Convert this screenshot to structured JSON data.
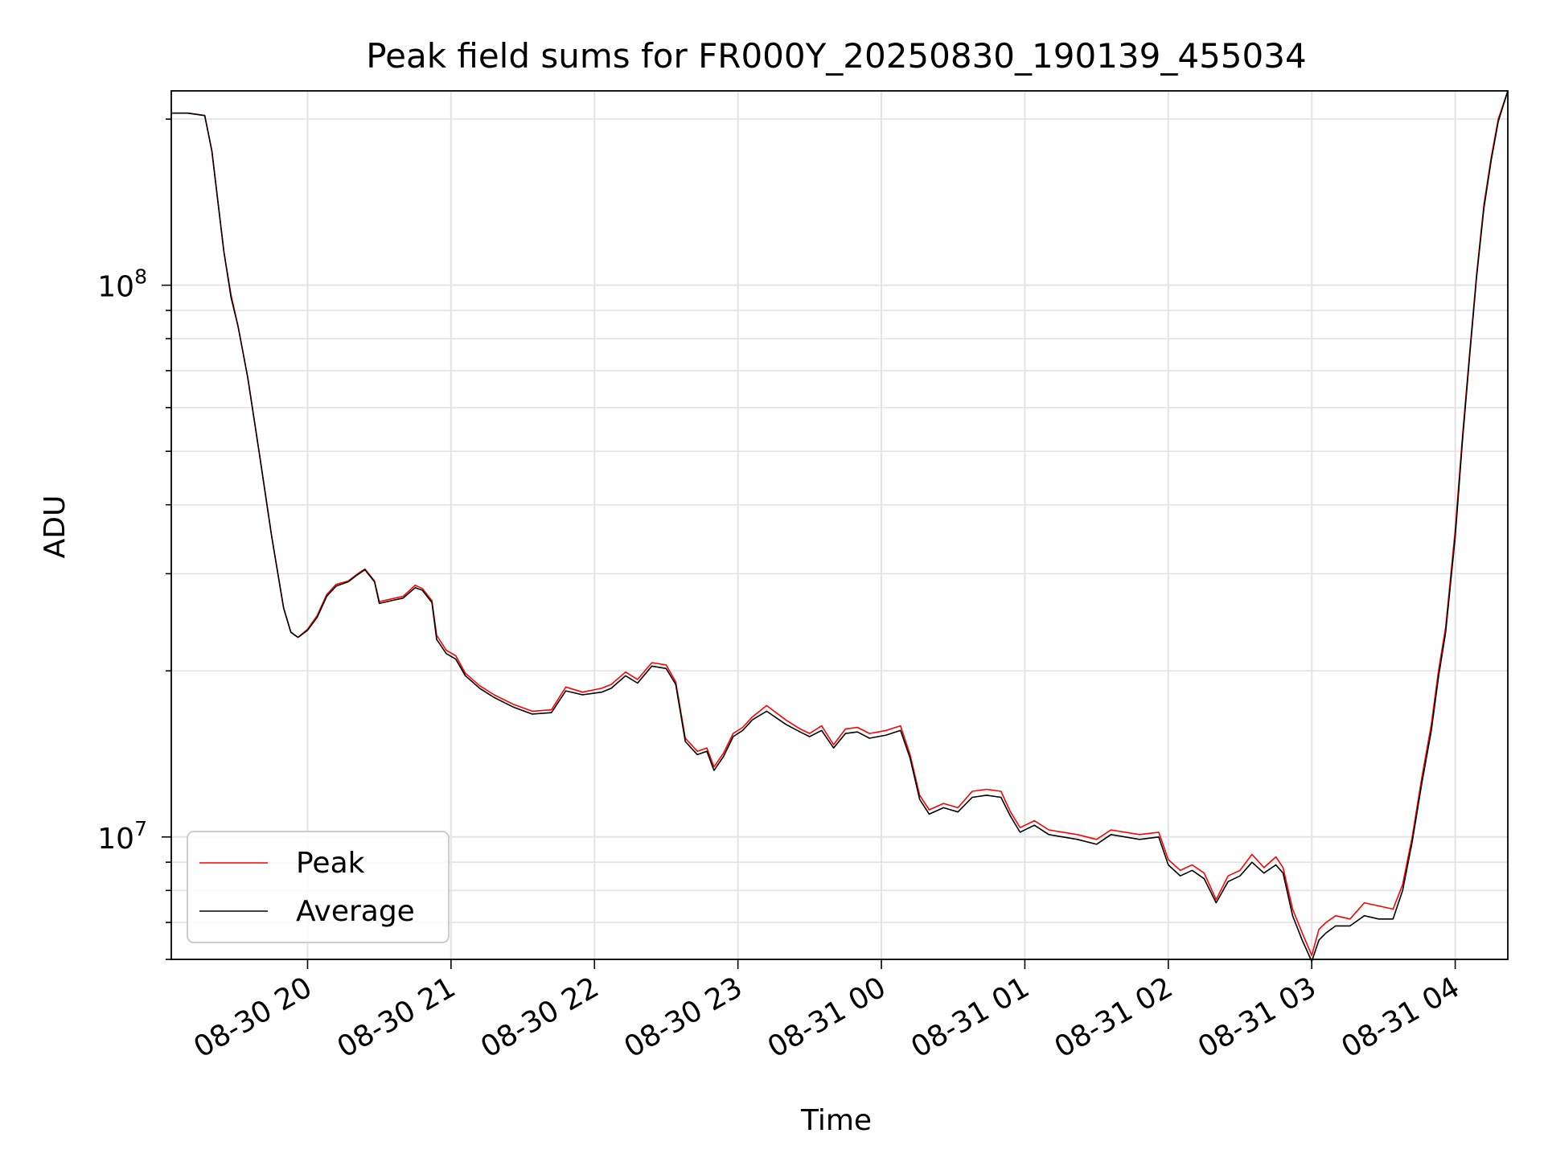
{
  "chart_data": {
    "type": "line",
    "title": "Peak field sums for FR000Y_20250830_190139_455034",
    "xlabel": "Time",
    "ylabel": "ADU",
    "yscale": "log",
    "xlim": [
      "2025-08-30 19:03",
      "2025-08-31 04:22"
    ],
    "ylim": [
      6000000,
      225000000
    ],
    "grid": true,
    "legend": {
      "position": "lower-left",
      "entries": [
        "Peak",
        "Average"
      ]
    },
    "x_ticks": [
      {
        "value": "2025-08-30 20:00",
        "label": "08-30 20"
      },
      {
        "value": "2025-08-30 21:00",
        "label": "08-30 21"
      },
      {
        "value": "2025-08-30 22:00",
        "label": "08-30 22"
      },
      {
        "value": "2025-08-30 23:00",
        "label": "08-30 23"
      },
      {
        "value": "2025-08-31 00:00",
        "label": "08-31 00"
      },
      {
        "value": "2025-08-31 01:00",
        "label": "08-31 01"
      },
      {
        "value": "2025-08-31 02:00",
        "label": "08-31 02"
      },
      {
        "value": "2025-08-31 03:00",
        "label": "08-31 03"
      },
      {
        "value": "2025-08-31 04:00",
        "label": "08-31 04"
      }
    ],
    "y_ticks": [
      {
        "value": 10000000,
        "base": "10",
        "exp": "7"
      },
      {
        "value": 100000000,
        "base": "10",
        "exp": "8"
      }
    ],
    "series": [
      {
        "name": "Peak",
        "color": "#ff0000",
        "points": [
          [
            "2025-08-30 19:03",
            205000000
          ],
          [
            "2025-08-30 19:10",
            205000000
          ],
          [
            "2025-08-30 19:17",
            203000000
          ],
          [
            "2025-08-30 19:20",
            175000000
          ],
          [
            "2025-08-30 19:25",
            115000000
          ],
          [
            "2025-08-30 19:28",
            96000000
          ],
          [
            "2025-08-30 19:31",
            84000000
          ],
          [
            "2025-08-30 19:35",
            68000000
          ],
          [
            "2025-08-30 19:40",
            49000000
          ],
          [
            "2025-08-30 19:45",
            35000000
          ],
          [
            "2025-08-30 19:50",
            26000000
          ],
          [
            "2025-08-30 19:53",
            23500000
          ],
          [
            "2025-08-30 19:56",
            23000000
          ],
          [
            "2025-08-30 20:00",
            23800000
          ],
          [
            "2025-08-30 20:04",
            25200000
          ],
          [
            "2025-08-30 20:08",
            27500000
          ],
          [
            "2025-08-30 20:12",
            28700000
          ],
          [
            "2025-08-30 20:17",
            29100000
          ],
          [
            "2025-08-30 20:21",
            30000000
          ],
          [
            "2025-08-30 20:24",
            30600000
          ],
          [
            "2025-08-30 20:28",
            29100000
          ],
          [
            "2025-08-30 20:30",
            26700000
          ],
          [
            "2025-08-30 20:35",
            27000000
          ],
          [
            "2025-08-30 20:40",
            27300000
          ],
          [
            "2025-08-30 20:45",
            28600000
          ],
          [
            "2025-08-30 20:48",
            28200000
          ],
          [
            "2025-08-30 20:52",
            26800000
          ],
          [
            "2025-08-30 20:54",
            23200000
          ],
          [
            "2025-08-30 20:58",
            21800000
          ],
          [
            "2025-08-30 21:02",
            21300000
          ],
          [
            "2025-08-30 21:06",
            19800000
          ],
          [
            "2025-08-30 21:12",
            18800000
          ],
          [
            "2025-08-30 21:18",
            18100000
          ],
          [
            "2025-08-30 21:26",
            17400000
          ],
          [
            "2025-08-30 21:34",
            16900000
          ],
          [
            "2025-08-30 21:42",
            17000000
          ],
          [
            "2025-08-30 21:48",
            18700000
          ],
          [
            "2025-08-30 21:55",
            18300000
          ],
          [
            "2025-08-30 22:03",
            18600000
          ],
          [
            "2025-08-30 22:07",
            18900000
          ],
          [
            "2025-08-30 22:13",
            19900000
          ],
          [
            "2025-08-30 22:18",
            19300000
          ],
          [
            "2025-08-30 22:24",
            20700000
          ],
          [
            "2025-08-30 22:30",
            20500000
          ],
          [
            "2025-08-30 22:34",
            19100000
          ],
          [
            "2025-08-30 22:38",
            15100000
          ],
          [
            "2025-08-30 22:43",
            14300000
          ],
          [
            "2025-08-30 22:47",
            14500000
          ],
          [
            "2025-08-30 22:50",
            13400000
          ],
          [
            "2025-08-30 22:54",
            14200000
          ],
          [
            "2025-08-30 22:58",
            15400000
          ],
          [
            "2025-08-30 23:02",
            15800000
          ],
          [
            "2025-08-30 23:06",
            16500000
          ],
          [
            "2025-08-30 23:12",
            17300000
          ],
          [
            "2025-08-30 23:20",
            16300000
          ],
          [
            "2025-08-30 23:26",
            15700000
          ],
          [
            "2025-08-30 23:30",
            15400000
          ],
          [
            "2025-08-30 23:35",
            15900000
          ],
          [
            "2025-08-30 23:40",
            14700000
          ],
          [
            "2025-08-30 23:45",
            15700000
          ],
          [
            "2025-08-30 23:50",
            15800000
          ],
          [
            "2025-08-30 23:55",
            15400000
          ],
          [
            "2025-08-31 00:02",
            15600000
          ],
          [
            "2025-08-31 00:08",
            15900000
          ],
          [
            "2025-08-31 00:12",
            14100000
          ],
          [
            "2025-08-31 00:16",
            11900000
          ],
          [
            "2025-08-31 00:20",
            11200000
          ],
          [
            "2025-08-31 00:26",
            11500000
          ],
          [
            "2025-08-31 00:32",
            11300000
          ],
          [
            "2025-08-31 00:38",
            12100000
          ],
          [
            "2025-08-31 00:44",
            12200000
          ],
          [
            "2025-08-31 00:50",
            12100000
          ],
          [
            "2025-08-31 00:54",
            11100000
          ],
          [
            "2025-08-31 00:58",
            10400000
          ],
          [
            "2025-08-31 01:04",
            10700000
          ],
          [
            "2025-08-31 01:10",
            10300000
          ],
          [
            "2025-08-31 01:16",
            10200000
          ],
          [
            "2025-08-31 01:22",
            10100000
          ],
          [
            "2025-08-31 01:30",
            9900000
          ],
          [
            "2025-08-31 01:36",
            10300000
          ],
          [
            "2025-08-31 01:42",
            10200000
          ],
          [
            "2025-08-31 01:48",
            10100000
          ],
          [
            "2025-08-31 01:56",
            10200000
          ],
          [
            "2025-08-31 02:00",
            9100000
          ],
          [
            "2025-08-31 02:05",
            8700000
          ],
          [
            "2025-08-31 02:10",
            8900000
          ],
          [
            "2025-08-31 02:15",
            8600000
          ],
          [
            "2025-08-31 02:20",
            7700000
          ],
          [
            "2025-08-31 02:25",
            8500000
          ],
          [
            "2025-08-31 02:30",
            8700000
          ],
          [
            "2025-08-31 02:35",
            9300000
          ],
          [
            "2025-08-31 02:40",
            8800000
          ],
          [
            "2025-08-31 02:45",
            9200000
          ],
          [
            "2025-08-31 02:48",
            8800000
          ],
          [
            "2025-08-31 02:52",
            7400000
          ],
          [
            "2025-08-31 02:56",
            6700000
          ],
          [
            "2025-08-31 03:00",
            6100000
          ],
          [
            "2025-08-31 03:03",
            6800000
          ],
          [
            "2025-08-31 03:06",
            7000000
          ],
          [
            "2025-08-31 03:10",
            7200000
          ],
          [
            "2025-08-31 03:16",
            7100000
          ],
          [
            "2025-08-31 03:22",
            7600000
          ],
          [
            "2025-08-31 03:28",
            7500000
          ],
          [
            "2025-08-31 03:34",
            7400000
          ],
          [
            "2025-08-31 03:38",
            8200000
          ],
          [
            "2025-08-31 03:42",
            10000000
          ],
          [
            "2025-08-31 03:46",
            12800000
          ],
          [
            "2025-08-31 03:50",
            16000000
          ],
          [
            "2025-08-31 03:53",
            20000000
          ],
          [
            "2025-08-31 03:56",
            24000000
          ],
          [
            "2025-08-31 04:00",
            36000000
          ],
          [
            "2025-08-31 04:03",
            53000000
          ],
          [
            "2025-08-31 04:06",
            75000000
          ],
          [
            "2025-08-31 04:09",
            105000000
          ],
          [
            "2025-08-31 04:12",
            140000000
          ],
          [
            "2025-08-31 04:15",
            170000000
          ],
          [
            "2025-08-31 04:18",
            200000000
          ],
          [
            "2025-08-31 04:22",
            225000000
          ]
        ]
      },
      {
        "name": "Average",
        "color": "#000000",
        "points": [
          [
            "2025-08-30 19:03",
            205000000
          ],
          [
            "2025-08-30 19:10",
            205000000
          ],
          [
            "2025-08-30 19:17",
            203000000
          ],
          [
            "2025-08-30 19:20",
            175000000
          ],
          [
            "2025-08-30 19:25",
            115000000
          ],
          [
            "2025-08-30 19:28",
            95000000
          ],
          [
            "2025-08-30 19:31",
            84000000
          ],
          [
            "2025-08-30 19:35",
            68000000
          ],
          [
            "2025-08-30 19:40",
            49000000
          ],
          [
            "2025-08-30 19:45",
            35000000
          ],
          [
            "2025-08-30 19:50",
            26000000
          ],
          [
            "2025-08-30 19:53",
            23500000
          ],
          [
            "2025-08-30 19:56",
            23000000
          ],
          [
            "2025-08-30 20:00",
            23700000
          ],
          [
            "2025-08-30 20:04",
            25000000
          ],
          [
            "2025-08-30 20:08",
            27300000
          ],
          [
            "2025-08-30 20:12",
            28500000
          ],
          [
            "2025-08-30 20:17",
            29000000
          ],
          [
            "2025-08-30 20:21",
            29900000
          ],
          [
            "2025-08-30 20:24",
            30500000
          ],
          [
            "2025-08-30 20:28",
            29000000
          ],
          [
            "2025-08-30 20:30",
            26500000
          ],
          [
            "2025-08-30 20:35",
            26800000
          ],
          [
            "2025-08-30 20:40",
            27100000
          ],
          [
            "2025-08-30 20:45",
            28300000
          ],
          [
            "2025-08-30 20:48",
            28000000
          ],
          [
            "2025-08-30 20:52",
            26600000
          ],
          [
            "2025-08-30 20:54",
            22800000
          ],
          [
            "2025-08-30 20:58",
            21500000
          ],
          [
            "2025-08-30 21:02",
            21000000
          ],
          [
            "2025-08-30 21:06",
            19600000
          ],
          [
            "2025-08-30 21:12",
            18600000
          ],
          [
            "2025-08-30 21:18",
            17900000
          ],
          [
            "2025-08-30 21:26",
            17200000
          ],
          [
            "2025-08-30 21:34",
            16700000
          ],
          [
            "2025-08-30 21:42",
            16800000
          ],
          [
            "2025-08-30 21:48",
            18400000
          ],
          [
            "2025-08-30 21:55",
            18100000
          ],
          [
            "2025-08-30 22:03",
            18300000
          ],
          [
            "2025-08-30 22:07",
            18600000
          ],
          [
            "2025-08-30 22:13",
            19600000
          ],
          [
            "2025-08-30 22:18",
            19000000
          ],
          [
            "2025-08-30 22:24",
            20400000
          ],
          [
            "2025-08-30 22:30",
            20200000
          ],
          [
            "2025-08-30 22:34",
            18900000
          ],
          [
            "2025-08-30 22:38",
            14900000
          ],
          [
            "2025-08-30 22:43",
            14100000
          ],
          [
            "2025-08-30 22:47",
            14300000
          ],
          [
            "2025-08-30 22:50",
            13200000
          ],
          [
            "2025-08-30 22:54",
            14000000
          ],
          [
            "2025-08-30 22:58",
            15200000
          ],
          [
            "2025-08-30 23:02",
            15600000
          ],
          [
            "2025-08-30 23:06",
            16300000
          ],
          [
            "2025-08-30 23:12",
            16900000
          ],
          [
            "2025-08-30 23:20",
            16000000
          ],
          [
            "2025-08-30 23:26",
            15500000
          ],
          [
            "2025-08-30 23:30",
            15200000
          ],
          [
            "2025-08-30 23:35",
            15600000
          ],
          [
            "2025-08-30 23:40",
            14500000
          ],
          [
            "2025-08-30 23:45",
            15400000
          ],
          [
            "2025-08-30 23:50",
            15500000
          ],
          [
            "2025-08-30 23:55",
            15100000
          ],
          [
            "2025-08-31 00:02",
            15300000
          ],
          [
            "2025-08-31 00:08",
            15600000
          ],
          [
            "2025-08-31 00:12",
            13900000
          ],
          [
            "2025-08-31 00:16",
            11700000
          ],
          [
            "2025-08-31 00:20",
            11000000
          ],
          [
            "2025-08-31 00:26",
            11300000
          ],
          [
            "2025-08-31 00:32",
            11100000
          ],
          [
            "2025-08-31 00:38",
            11800000
          ],
          [
            "2025-08-31 00:44",
            11900000
          ],
          [
            "2025-08-31 00:50",
            11800000
          ],
          [
            "2025-08-31 00:54",
            10900000
          ],
          [
            "2025-08-31 00:58",
            10200000
          ],
          [
            "2025-08-31 01:04",
            10500000
          ],
          [
            "2025-08-31 01:10",
            10100000
          ],
          [
            "2025-08-31 01:16",
            10000000
          ],
          [
            "2025-08-31 01:22",
            9900000
          ],
          [
            "2025-08-31 01:30",
            9700000
          ],
          [
            "2025-08-31 01:36",
            10100000
          ],
          [
            "2025-08-31 01:42",
            10000000
          ],
          [
            "2025-08-31 01:48",
            9900000
          ],
          [
            "2025-08-31 01:56",
            10000000
          ],
          [
            "2025-08-31 02:00",
            8900000
          ],
          [
            "2025-08-31 02:05",
            8500000
          ],
          [
            "2025-08-31 02:10",
            8700000
          ],
          [
            "2025-08-31 02:15",
            8400000
          ],
          [
            "2025-08-31 02:20",
            7600000
          ],
          [
            "2025-08-31 02:25",
            8300000
          ],
          [
            "2025-08-31 02:30",
            8500000
          ],
          [
            "2025-08-31 02:35",
            9000000
          ],
          [
            "2025-08-31 02:40",
            8600000
          ],
          [
            "2025-08-31 02:45",
            8900000
          ],
          [
            "2025-08-31 02:48",
            8600000
          ],
          [
            "2025-08-31 02:52",
            7200000
          ],
          [
            "2025-08-31 02:56",
            6500000
          ],
          [
            "2025-08-31 03:00",
            5950000
          ],
          [
            "2025-08-31 03:03",
            6500000
          ],
          [
            "2025-08-31 03:06",
            6700000
          ],
          [
            "2025-08-31 03:10",
            6900000
          ],
          [
            "2025-08-31 03:16",
            6900000
          ],
          [
            "2025-08-31 03:22",
            7200000
          ],
          [
            "2025-08-31 03:28",
            7100000
          ],
          [
            "2025-08-31 03:34",
            7100000
          ],
          [
            "2025-08-31 03:38",
            8000000
          ],
          [
            "2025-08-31 03:42",
            9800000
          ],
          [
            "2025-08-31 03:46",
            12500000
          ],
          [
            "2025-08-31 03:50",
            15600000
          ],
          [
            "2025-08-31 03:53",
            19500000
          ],
          [
            "2025-08-31 03:56",
            23500000
          ],
          [
            "2025-08-31 04:00",
            35000000
          ],
          [
            "2025-08-31 04:03",
            52000000
          ],
          [
            "2025-08-31 04:06",
            74000000
          ],
          [
            "2025-08-31 04:09",
            104000000
          ],
          [
            "2025-08-31 04:12",
            138000000
          ],
          [
            "2025-08-31 04:15",
            168000000
          ],
          [
            "2025-08-31 04:18",
            198000000
          ],
          [
            "2025-08-31 04:22",
            225000000
          ]
        ]
      }
    ]
  }
}
